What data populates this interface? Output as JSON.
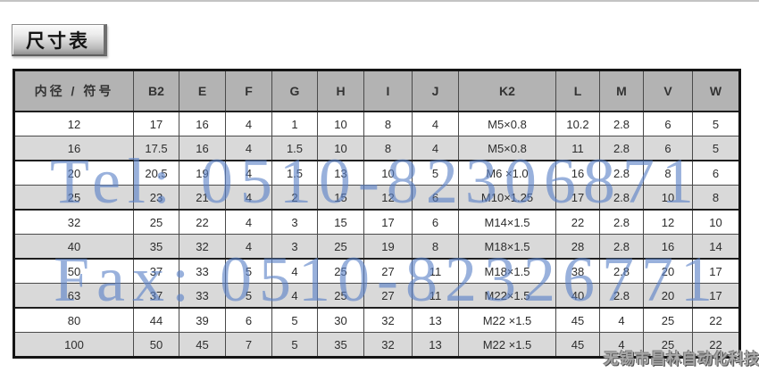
{
  "page": {
    "title_button": "尺寸表"
  },
  "table": {
    "columns": [
      "内径 / 符号",
      "B2",
      "E",
      "F",
      "G",
      "H",
      "I",
      "J",
      "K2",
      "L",
      "M",
      "V",
      "W"
    ],
    "rows": [
      [
        "12",
        "17",
        "16",
        "4",
        "1",
        "10",
        "8",
        "4",
        "M5×0.8",
        "10.2",
        "2.8",
        "6",
        "5"
      ],
      [
        "16",
        "17.5",
        "16",
        "4",
        "1.5",
        "10",
        "8",
        "4",
        "M5×0.8",
        "11",
        "2.8",
        "6",
        "5"
      ],
      [
        "20",
        "20.5",
        "19",
        "4",
        "1.5",
        "13",
        "10",
        "5",
        "M6 ×1.0",
        "16",
        "2.8",
        "8",
        "6"
      ],
      [
        "25",
        "23",
        "21",
        "4",
        "2",
        "15",
        "12",
        "6",
        "M10×1.25",
        "17",
        "2.8",
        "10",
        "8"
      ],
      [
        "32",
        "25",
        "22",
        "4",
        "3",
        "15",
        "17",
        "6",
        "M14×1.5",
        "22",
        "2.8",
        "12",
        "10"
      ],
      [
        "40",
        "35",
        "32",
        "4",
        "3",
        "25",
        "19",
        "8",
        "M18×1.5",
        "28",
        "2.8",
        "16",
        "14"
      ],
      [
        "50",
        "37",
        "33",
        "5",
        "4",
        "25",
        "27",
        "11",
        "M18×1.5",
        "38",
        "2.8",
        "20",
        "17"
      ],
      [
        "63",
        "37",
        "33",
        "5",
        "4",
        "25",
        "27",
        "11",
        "M22×1.5",
        "40",
        "2.8",
        "20",
        "17"
      ],
      [
        "80",
        "44",
        "39",
        "6",
        "5",
        "30",
        "32",
        "13",
        "M22 ×1.5",
        "45",
        "4",
        "25",
        "22"
      ],
      [
        "100",
        "50",
        "45",
        "7",
        "5",
        "35",
        "32",
        "13",
        "M22 ×1.5",
        "45",
        "4",
        "25",
        "22"
      ]
    ]
  },
  "watermarks": {
    "tel": "Tel: 0510-82306871",
    "fax": "Fax: 0510-82326771",
    "company": "无锡市昌林自动化科技"
  },
  "colors": {
    "watermark_blue": "#5b82c8",
    "header_gray": "#b3b3b3",
    "alt_row_gray": "#d9d9d9",
    "table_border": "#141414"
  }
}
